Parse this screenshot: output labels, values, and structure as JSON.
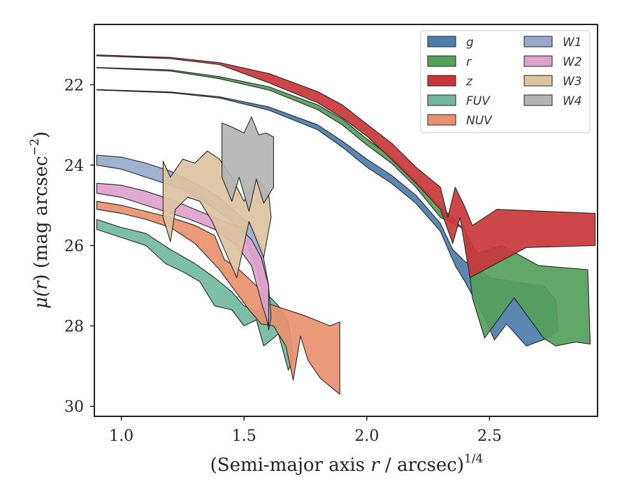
{
  "chart_data": {
    "type": "area",
    "title": "",
    "xlabel": "(Semi-major axis r / arcsec)",
    "xlabel_parts": {
      "pre": "(Semi-major axis ",
      "var": "r",
      "post": " / arcsec)",
      "exp": "1/4"
    },
    "ylabel": "μ(r) (mag arcsec−2)",
    "ylabel_parts": {
      "mu": "μ(",
      "var": "r",
      "mid": ") (mag arcsec",
      "exp": "−2",
      "close": ")"
    },
    "xlim": [
      0.89,
      2.94
    ],
    "ylim": [
      30.25,
      20.5
    ],
    "y_inverted": true,
    "xticks": [
      1.0,
      1.5,
      2.0,
      2.5
    ],
    "xtick_labels": [
      "1.0",
      "1.5",
      "2.0",
      "2.5"
    ],
    "yticks": [
      22,
      24,
      26,
      28,
      30
    ],
    "ytick_labels": [
      "22",
      "24",
      "26",
      "28",
      "30"
    ],
    "grid": false,
    "legend": {
      "placement": "top-right",
      "columns": 2
    },
    "series": [
      {
        "name": "g",
        "label": "g",
        "color": "#4c7eab",
        "upper": [
          [
            0.9,
            22.12
          ],
          [
            1.2,
            22.18
          ],
          [
            1.4,
            22.3
          ],
          [
            1.6,
            22.55
          ],
          [
            1.8,
            23.0
          ],
          [
            1.9,
            23.4
          ],
          [
            2.0,
            23.85
          ],
          [
            2.1,
            24.25
          ],
          [
            2.2,
            24.75
          ],
          [
            2.3,
            25.45
          ],
          [
            2.35,
            26.1
          ],
          [
            2.4,
            26.4
          ],
          [
            2.45,
            26.55
          ],
          [
            2.5,
            26.8
          ],
          [
            2.65,
            26.95
          ],
          [
            2.72,
            27.0
          ],
          [
            2.77,
            27.35
          ],
          [
            2.78,
            28.1
          ]
        ],
        "lower": [
          [
            2.78,
            28.1
          ],
          [
            2.74,
            28.3
          ],
          [
            2.65,
            28.5
          ],
          [
            2.57,
            27.95
          ],
          [
            2.52,
            28.35
          ],
          [
            2.48,
            27.8
          ],
          [
            2.4,
            26.9
          ],
          [
            2.36,
            26.5
          ],
          [
            2.3,
            25.65
          ],
          [
            2.2,
            24.95
          ],
          [
            2.1,
            24.45
          ],
          [
            2.0,
            24.05
          ],
          [
            1.9,
            23.55
          ],
          [
            1.8,
            23.12
          ],
          [
            1.6,
            22.63
          ],
          [
            1.4,
            22.33
          ],
          [
            1.2,
            22.2
          ],
          [
            0.9,
            22.13
          ]
        ]
      },
      {
        "name": "r",
        "label": "r",
        "color": "#55a05a",
        "upper": [
          [
            0.9,
            21.57
          ],
          [
            1.2,
            21.63
          ],
          [
            1.4,
            21.8
          ],
          [
            1.6,
            22.05
          ],
          [
            1.8,
            22.5
          ],
          [
            1.9,
            22.85
          ],
          [
            2.0,
            23.35
          ],
          [
            2.1,
            23.8
          ],
          [
            2.2,
            24.4
          ],
          [
            2.3,
            25.05
          ],
          [
            2.35,
            25.3
          ],
          [
            2.4,
            25.65
          ],
          [
            2.45,
            26.2
          ],
          [
            2.55,
            26.0
          ],
          [
            2.7,
            26.5
          ],
          [
            2.9,
            26.6
          ],
          [
            2.91,
            28.45
          ]
        ],
        "lower": [
          [
            2.91,
            28.45
          ],
          [
            2.85,
            28.4
          ],
          [
            2.77,
            28.5
          ],
          [
            2.72,
            28.3
          ],
          [
            2.6,
            27.3
          ],
          [
            2.48,
            28.3
          ],
          [
            2.43,
            27.3
          ],
          [
            2.4,
            25.6
          ],
          [
            2.35,
            25.45
          ],
          [
            2.3,
            25.3
          ],
          [
            2.2,
            24.55
          ],
          [
            2.1,
            23.95
          ],
          [
            2.0,
            23.5
          ],
          [
            1.9,
            23.0
          ],
          [
            1.8,
            22.62
          ],
          [
            1.6,
            22.13
          ],
          [
            1.4,
            21.85
          ],
          [
            1.2,
            21.66
          ],
          [
            0.9,
            21.58
          ]
        ]
      },
      {
        "name": "z",
        "label": "z",
        "color": "#c9373a",
        "upper": [
          [
            0.9,
            21.26
          ],
          [
            1.2,
            21.32
          ],
          [
            1.4,
            21.45
          ],
          [
            1.6,
            21.72
          ],
          [
            1.8,
            22.17
          ],
          [
            1.9,
            22.5
          ],
          [
            2.0,
            22.98
          ],
          [
            2.1,
            23.45
          ],
          [
            2.2,
            24.05
          ],
          [
            2.3,
            24.55
          ],
          [
            2.33,
            25.3
          ],
          [
            2.36,
            24.55
          ],
          [
            2.4,
            25.05
          ],
          [
            2.43,
            25.5
          ],
          [
            2.53,
            25.1
          ],
          [
            2.93,
            25.2
          ],
          [
            2.93,
            26.0
          ]
        ],
        "lower": [
          [
            2.93,
            26.0
          ],
          [
            2.65,
            26.05
          ],
          [
            2.42,
            26.8
          ],
          [
            2.38,
            25.3
          ],
          [
            2.35,
            25.95
          ],
          [
            2.3,
            25.1
          ],
          [
            2.2,
            24.45
          ],
          [
            2.1,
            23.85
          ],
          [
            2.0,
            23.28
          ],
          [
            1.9,
            22.82
          ],
          [
            1.8,
            22.45
          ],
          [
            1.6,
            21.95
          ],
          [
            1.4,
            21.5
          ],
          [
            1.2,
            21.35
          ],
          [
            0.9,
            21.28
          ]
        ]
      },
      {
        "name": "FUV",
        "label": "FUV",
        "color": "#72b8a0",
        "upper": [
          [
            0.9,
            25.35
          ],
          [
            1.0,
            25.55
          ],
          [
            1.1,
            25.7
          ],
          [
            1.2,
            26.1
          ],
          [
            1.3,
            26.45
          ],
          [
            1.38,
            26.8
          ],
          [
            1.45,
            27.15
          ],
          [
            1.5,
            27.5
          ],
          [
            1.56,
            27.65
          ],
          [
            1.6,
            27.25
          ],
          [
            1.64,
            27.5
          ],
          [
            1.68,
            27.9
          ]
        ],
        "lower": [
          [
            1.68,
            27.9
          ],
          [
            1.7,
            28.85
          ],
          [
            1.68,
            29.1
          ],
          [
            1.64,
            28.2
          ],
          [
            1.58,
            28.5
          ],
          [
            1.55,
            27.85
          ],
          [
            1.5,
            28.0
          ],
          [
            1.45,
            27.6
          ],
          [
            1.38,
            27.5
          ],
          [
            1.32,
            26.9
          ],
          [
            1.25,
            26.65
          ],
          [
            1.18,
            26.45
          ],
          [
            1.1,
            26.0
          ],
          [
            1.0,
            25.8
          ],
          [
            0.9,
            25.6
          ]
        ]
      },
      {
        "name": "NUV",
        "label": "NUV",
        "color": "#e8916e",
        "upper": [
          [
            0.9,
            24.9
          ],
          [
            1.0,
            25.0
          ],
          [
            1.1,
            25.15
          ],
          [
            1.2,
            25.3
          ],
          [
            1.3,
            25.5
          ],
          [
            1.38,
            25.75
          ],
          [
            1.42,
            26.35
          ],
          [
            1.48,
            26.6
          ],
          [
            1.55,
            27.0
          ],
          [
            1.6,
            27.45
          ],
          [
            1.65,
            27.55
          ],
          [
            1.75,
            27.75
          ],
          [
            1.85,
            28.0
          ],
          [
            1.89,
            27.9
          ]
        ],
        "lower": [
          [
            1.89,
            27.9
          ],
          [
            1.89,
            29.7
          ],
          [
            1.81,
            29.3
          ],
          [
            1.76,
            28.85
          ],
          [
            1.73,
            28.25
          ],
          [
            1.7,
            29.35
          ],
          [
            1.67,
            28.5
          ],
          [
            1.62,
            28.0
          ],
          [
            1.57,
            27.95
          ],
          [
            1.52,
            27.6
          ],
          [
            1.46,
            27.1
          ],
          [
            1.4,
            26.6
          ],
          [
            1.3,
            25.95
          ],
          [
            1.2,
            25.55
          ],
          [
            1.1,
            25.35
          ],
          [
            1.0,
            25.2
          ],
          [
            0.9,
            25.1
          ]
        ]
      },
      {
        "name": "W1",
        "label": "W1",
        "color": "#98a9cc",
        "upper": [
          [
            0.9,
            23.75
          ],
          [
            1.0,
            23.8
          ],
          [
            1.1,
            23.95
          ],
          [
            1.2,
            24.15
          ],
          [
            1.3,
            24.45
          ],
          [
            1.4,
            24.8
          ],
          [
            1.48,
            25.25
          ],
          [
            1.53,
            25.5
          ],
          [
            1.57,
            26.0
          ],
          [
            1.6,
            27.0
          ],
          [
            1.61,
            27.8
          ]
        ],
        "lower": [
          [
            1.61,
            27.8
          ],
          [
            1.6,
            28.1
          ],
          [
            1.58,
            27.3
          ],
          [
            1.55,
            26.5
          ],
          [
            1.5,
            25.8
          ],
          [
            1.45,
            25.4
          ],
          [
            1.35,
            24.95
          ],
          [
            1.25,
            24.6
          ],
          [
            1.15,
            24.4
          ],
          [
            1.0,
            24.1
          ],
          [
            0.9,
            24.0
          ]
        ]
      },
      {
        "name": "W2",
        "label": "W2",
        "color": "#dea1cc",
        "upper": [
          [
            0.9,
            24.45
          ],
          [
            1.0,
            24.5
          ],
          [
            1.1,
            24.65
          ],
          [
            1.2,
            24.85
          ],
          [
            1.3,
            25.1
          ],
          [
            1.4,
            25.35
          ],
          [
            1.48,
            25.55
          ],
          [
            1.53,
            25.85
          ],
          [
            1.57,
            26.3
          ],
          [
            1.6,
            27.0
          ]
        ],
        "lower": [
          [
            1.6,
            27.0
          ],
          [
            1.6,
            28.0
          ],
          [
            1.57,
            27.4
          ],
          [
            1.53,
            26.5
          ],
          [
            1.47,
            26.0
          ],
          [
            1.38,
            25.6
          ],
          [
            1.28,
            25.35
          ],
          [
            1.2,
            25.2
          ],
          [
            1.1,
            25.0
          ],
          [
            1.0,
            24.8
          ],
          [
            0.9,
            24.7
          ]
        ]
      },
      {
        "name": "W3",
        "label": "W3",
        "color": "#dcc39f",
        "upper": [
          [
            1.17,
            23.9
          ],
          [
            1.2,
            24.3
          ],
          [
            1.25,
            23.85
          ],
          [
            1.3,
            23.95
          ],
          [
            1.35,
            23.65
          ],
          [
            1.4,
            23.85
          ],
          [
            1.45,
            24.3
          ],
          [
            1.5,
            24.9
          ],
          [
            1.55,
            24.3
          ],
          [
            1.6,
            24.7
          ],
          [
            1.61,
            25.3
          ]
        ],
        "lower": [
          [
            1.61,
            25.3
          ],
          [
            1.58,
            26.3
          ],
          [
            1.52,
            25.4
          ],
          [
            1.47,
            26.8
          ],
          [
            1.42,
            26.1
          ],
          [
            1.37,
            25.4
          ],
          [
            1.32,
            24.9
          ],
          [
            1.27,
            24.8
          ],
          [
            1.22,
            25.1
          ],
          [
            1.2,
            25.9
          ],
          [
            1.17,
            25.3
          ]
        ]
      },
      {
        "name": "W4",
        "label": "W4",
        "color": "#b4b4b4",
        "upper": [
          [
            1.41,
            22.95
          ],
          [
            1.45,
            23.05
          ],
          [
            1.5,
            23.2
          ],
          [
            1.53,
            22.8
          ],
          [
            1.56,
            23.25
          ],
          [
            1.59,
            23.2
          ],
          [
            1.62,
            23.3
          ]
        ],
        "lower": [
          [
            1.62,
            24.55
          ],
          [
            1.58,
            24.95
          ],
          [
            1.55,
            24.35
          ],
          [
            1.52,
            25.15
          ],
          [
            1.48,
            24.3
          ],
          [
            1.45,
            24.9
          ],
          [
            1.41,
            24.3
          ]
        ]
      }
    ]
  }
}
